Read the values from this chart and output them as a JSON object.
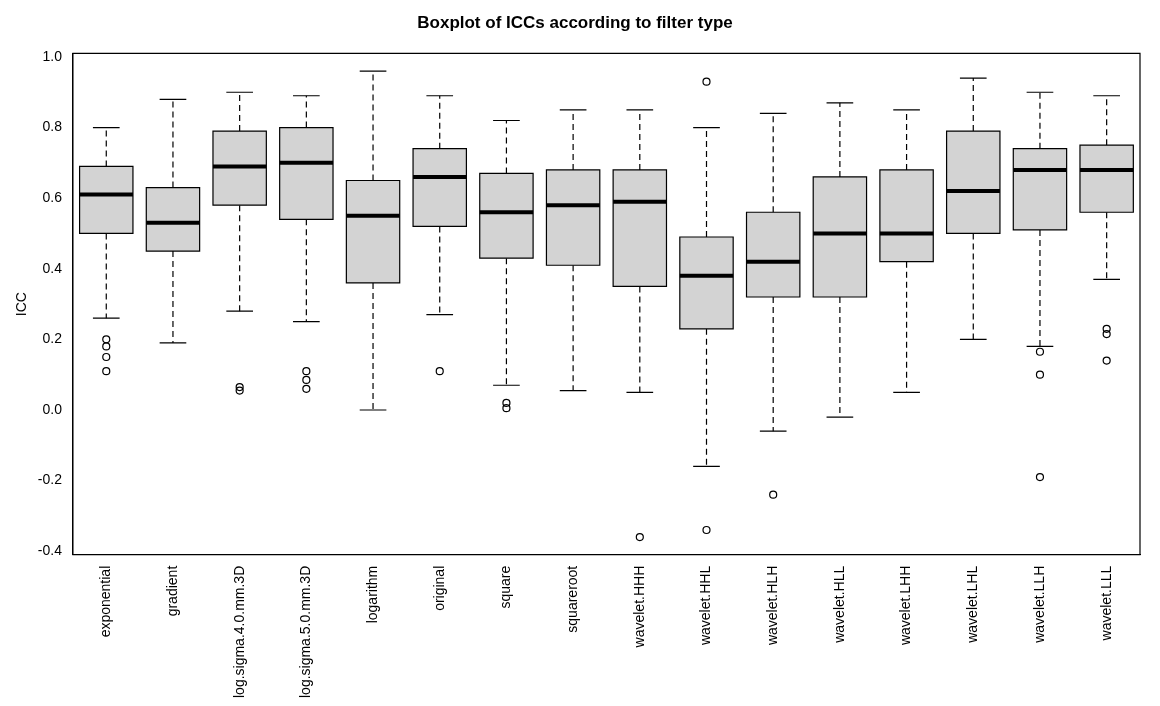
{
  "chart_data": {
    "type": "box",
    "title": "Boxplot of ICCs according to filter type",
    "ylabel": "ICC",
    "color": "#d3d3d3",
    "categories": [
      "exponential",
      "gradient",
      "log.sigma.4.0.mm.3D",
      "log.sigma.5.0.mm.3D",
      "logarithm",
      "original",
      "square",
      "squareroot",
      "wavelet.HHH",
      "wavelet.HHL",
      "wavelet.HLH",
      "wavelet.HLL",
      "wavelet.LHH",
      "wavelet.LHL",
      "wavelet.LLH",
      "wavelet.LLL"
    ],
    "boxes": [
      {
        "low": 0.26,
        "q1": 0.5,
        "median": 0.61,
        "q3": 0.69,
        "high": 0.8,
        "outliers": [
          0.2,
          0.18,
          0.15,
          0.11
        ]
      },
      {
        "low": 0.19,
        "q1": 0.45,
        "median": 0.53,
        "q3": 0.63,
        "high": 0.88
      },
      {
        "low": 0.28,
        "q1": 0.58,
        "median": 0.69,
        "q3": 0.79,
        "high": 0.9,
        "outliers": [
          0.065,
          0.055
        ]
      },
      {
        "low": 0.25,
        "q1": 0.54,
        "median": 0.7,
        "q3": 0.8,
        "high": 0.89,
        "outliers": [
          0.11,
          0.085,
          0.06
        ]
      },
      {
        "low": 0.0,
        "q1": 0.36,
        "median": 0.55,
        "q3": 0.65,
        "high": 0.96
      },
      {
        "low": 0.27,
        "q1": 0.52,
        "median": 0.66,
        "q3": 0.74,
        "high": 0.89,
        "outliers": [
          0.11
        ]
      },
      {
        "low": 0.07,
        "q1": 0.43,
        "median": 0.56,
        "q3": 0.67,
        "high": 0.82,
        "outliers": [
          0.02,
          0.005
        ]
      },
      {
        "low": 0.055,
        "q1": 0.41,
        "median": 0.58,
        "q3": 0.68,
        "high": 0.85
      },
      {
        "low": 0.05,
        "q1": 0.35,
        "median": 0.59,
        "q3": 0.68,
        "high": 0.85,
        "outliers": [
          -0.36
        ]
      },
      {
        "low": -0.16,
        "q1": 0.23,
        "median": 0.38,
        "q3": 0.49,
        "high": 0.8,
        "outliers": [
          0.93,
          -0.34
        ]
      },
      {
        "low": -0.06,
        "q1": 0.32,
        "median": 0.42,
        "q3": 0.56,
        "high": 0.84,
        "outliers": [
          -0.24
        ]
      },
      {
        "low": -0.02,
        "q1": 0.32,
        "median": 0.5,
        "q3": 0.66,
        "high": 0.87
      },
      {
        "low": 0.05,
        "q1": 0.42,
        "median": 0.5,
        "q3": 0.68,
        "high": 0.85
      },
      {
        "low": 0.2,
        "q1": 0.5,
        "median": 0.62,
        "q3": 0.79,
        "high": 0.94
      },
      {
        "low": 0.18,
        "q1": 0.51,
        "median": 0.68,
        "q3": 0.74,
        "high": 0.9,
        "outliers": [
          0.165,
          0.1,
          -0.19
        ]
      },
      {
        "low": 0.37,
        "q1": 0.56,
        "median": 0.68,
        "q3": 0.75,
        "high": 0.89,
        "outliers": [
          0.23,
          0.215,
          0.14
        ]
      }
    ],
    "ylim": [
      -0.41,
      1.01
    ],
    "yticks": [
      {
        "value": -0.4,
        "label": "-0.4"
      },
      {
        "value": -0.2,
        "label": "-0.2"
      },
      {
        "value": 0,
        "label": "0.0"
      },
      {
        "value": 0.2,
        "label": "0.2"
      },
      {
        "value": 0.4,
        "label": "0.4"
      },
      {
        "value": 0.6,
        "label": "0.6"
      },
      {
        "value": 0.8,
        "label": "0.8"
      },
      {
        "value": 1,
        "label": "1.0"
      }
    ],
    "grid": false
  }
}
